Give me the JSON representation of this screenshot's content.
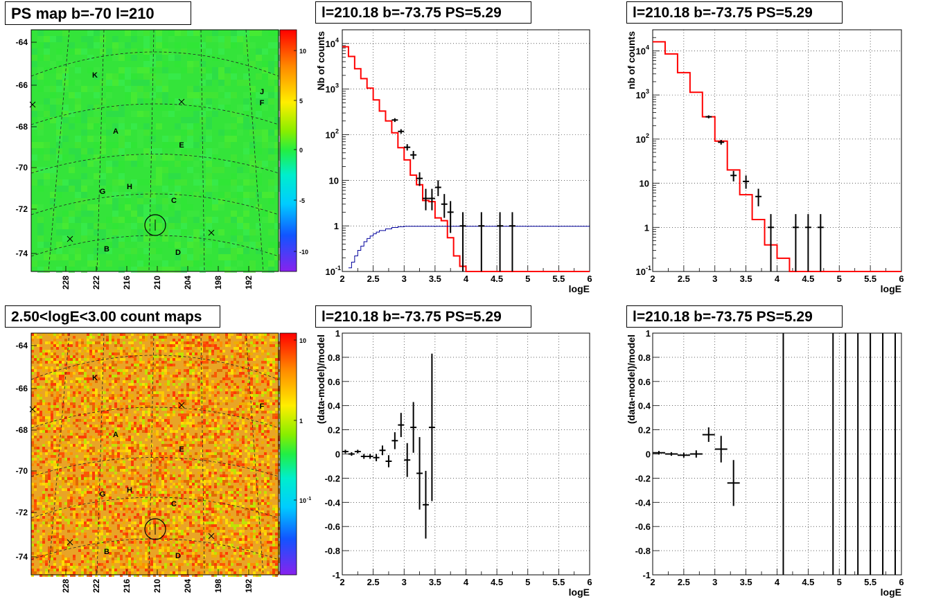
{
  "colors": {
    "data_marker": "#000000",
    "model_line": "#ff0000",
    "efficiency_line": "#00009c",
    "grid": "#000000",
    "map_background_ps": "#33ee33",
    "map_background_counts": "#e8a020"
  },
  "panels": {
    "ps_map": {
      "title": "PS map b=-70 l=210",
      "colorbar_ticks": [
        "10",
        "5",
        "0",
        "-5",
        "-10"
      ],
      "source_labels": [
        "K",
        "J",
        "F",
        "A",
        "E",
        "G",
        "H",
        "C",
        "B",
        "D"
      ],
      "y_ticks": [
        "-64",
        "-66",
        "-68",
        "-70",
        "-72",
        "-74"
      ],
      "x_ticks": [
        "228",
        "222",
        "216",
        "210",
        "204",
        "198",
        "192"
      ]
    },
    "count_map": {
      "title": "2.50<logE<3.00 count maps",
      "colorbar_ticks": [
        "10",
        "1",
        "10"
      ],
      "colorbar_tick_superscript": "-1",
      "source_labels": [
        "K",
        "F",
        "A",
        "E",
        "G",
        "H",
        "C",
        "B",
        "D"
      ],
      "y_ticks": [
        "-64",
        "-66",
        "-68",
        "-70",
        "-72",
        "-74"
      ],
      "x_ticks": [
        "228",
        "222",
        "216",
        "210",
        "204",
        "198",
        "192"
      ]
    }
  },
  "chart_data": [
    {
      "id": "spectrum_left",
      "type": "line",
      "title": "l=210.18 b=-73.75 PS=5.29",
      "xlabel": "logE",
      "ylabel": "Nb of counts",
      "log_y": true,
      "xlim": [
        2,
        6
      ],
      "ylim": [
        0.1,
        20000
      ],
      "grid": true,
      "x_ticks": [
        "2",
        "2.5",
        "3",
        "3.5",
        "4",
        "4.5",
        "5",
        "5.5",
        "6"
      ],
      "y_ticks": [
        {
          "base": "10",
          "exp": "-1"
        },
        {
          "base": "1",
          "exp": ""
        },
        {
          "base": "10",
          "exp": ""
        },
        {
          "base": "10",
          "exp": "2"
        },
        {
          "base": "10",
          "exp": "3"
        },
        {
          "base": "10",
          "exp": "4"
        }
      ],
      "series": [
        {
          "role": "model",
          "edges": [
            2,
            2.1,
            2.2,
            2.3,
            2.4,
            2.5,
            2.6,
            2.7,
            2.8,
            2.9,
            3.0,
            3.1,
            3.2,
            3.3,
            3.4,
            3.5,
            3.6,
            3.7,
            3.8,
            3.9,
            4.0,
            4.1,
            6.0
          ],
          "values": [
            8500,
            5200,
            2800,
            1700,
            1050,
            580,
            330,
            200,
            110,
            52,
            28,
            13,
            8,
            3.6,
            3.4,
            1.5,
            1.3,
            0.55,
            0.22,
            0.13,
            0.1,
            0.1
          ]
        },
        {
          "role": "efficiency",
          "edges": [
            2.1,
            2.15,
            2.2,
            2.25,
            2.3,
            2.35,
            2.4,
            2.45,
            2.5,
            2.55,
            2.6,
            2.7,
            2.8,
            2.9,
            3.0,
            6.0
          ],
          "values": [
            0.12,
            0.16,
            0.22,
            0.29,
            0.36,
            0.45,
            0.53,
            0.6,
            0.67,
            0.73,
            0.79,
            0.86,
            0.92,
            0.96,
            0.98
          ]
        },
        {
          "role": "data",
          "points": [
            {
              "x": 2.85,
              "y": 210,
              "ylo": 190,
              "yhi": 230
            },
            {
              "x": 2.95,
              "y": 118,
              "ylo": 105,
              "yhi": 132
            },
            {
              "x": 3.05,
              "y": 53,
              "ylo": 45,
              "yhi": 62
            },
            {
              "x": 3.15,
              "y": 36,
              "ylo": 29,
              "yhi": 44
            },
            {
              "x": 3.25,
              "y": 11,
              "ylo": 7.5,
              "yhi": 15
            },
            {
              "x": 3.35,
              "y": 4,
              "ylo": 2.2,
              "yhi": 6.5
            },
            {
              "x": 3.45,
              "y": 4,
              "ylo": 2.2,
              "yhi": 6.5
            },
            {
              "x": 3.55,
              "y": 7,
              "ylo": 4.5,
              "yhi": 10
            },
            {
              "x": 3.65,
              "y": 3,
              "ylo": 1.5,
              "yhi": 5
            },
            {
              "x": 3.75,
              "y": 2,
              "ylo": 0.7,
              "yhi": 3.5
            },
            {
              "x": 3.95,
              "y": 1,
              "ylo": 0.1,
              "yhi": 2
            },
            {
              "x": 4.25,
              "y": 1,
              "ylo": 0.1,
              "yhi": 2
            },
            {
              "x": 4.55,
              "y": 1,
              "ylo": 0.1,
              "yhi": 2
            },
            {
              "x": 4.75,
              "y": 1,
              "ylo": 0.1,
              "yhi": 2
            }
          ]
        }
      ]
    },
    {
      "id": "spectrum_right",
      "type": "line",
      "title": "l=210.18 b=-73.75 PS=5.29",
      "xlabel": "logE",
      "ylabel": "nb of counts",
      "log_y": true,
      "xlim": [
        2,
        6
      ],
      "ylim": [
        0.1,
        30000
      ],
      "grid": true,
      "x_ticks": [
        "2",
        "2.5",
        "3",
        "3.5",
        "4",
        "4.5",
        "5",
        "5.5",
        "6"
      ],
      "y_ticks": [
        {
          "base": "10",
          "exp": "-1"
        },
        {
          "base": "1",
          "exp": ""
        },
        {
          "base": "10",
          "exp": ""
        },
        {
          "base": "10",
          "exp": "2"
        },
        {
          "base": "10",
          "exp": "3"
        },
        {
          "base": "10",
          "exp": "4"
        }
      ],
      "series": [
        {
          "role": "model",
          "edges": [
            2,
            2.2,
            2.4,
            2.6,
            2.8,
            3.0,
            3.2,
            3.4,
            3.6,
            3.8,
            4.0,
            4.2,
            6.0
          ],
          "values": [
            16000,
            8500,
            3200,
            1150,
            320,
            90,
            20,
            5.5,
            1.5,
            0.4,
            0.2,
            0.1
          ]
        },
        {
          "role": "data",
          "points": [
            {
              "x": 2.9,
              "y": 320,
              "ylo": 295,
              "yhi": 345
            },
            {
              "x": 3.1,
              "y": 85,
              "ylo": 75,
              "yhi": 96
            },
            {
              "x": 3.3,
              "y": 15,
              "ylo": 11,
              "yhi": 19
            },
            {
              "x": 3.5,
              "y": 11,
              "ylo": 7.5,
              "yhi": 15
            },
            {
              "x": 3.7,
              "y": 5,
              "ylo": 3,
              "yhi": 7.5
            },
            {
              "x": 3.9,
              "y": 1,
              "ylo": 0.1,
              "yhi": 2
            },
            {
              "x": 4.3,
              "y": 1,
              "ylo": 0.1,
              "yhi": 2
            },
            {
              "x": 4.5,
              "y": 1,
              "ylo": 0.1,
              "yhi": 2
            },
            {
              "x": 4.7,
              "y": 1,
              "ylo": 0.1,
              "yhi": 2
            }
          ]
        }
      ]
    },
    {
      "id": "residual_left",
      "type": "scatter",
      "title": "l=210.18 b=-73.75 PS=5.29",
      "xlabel": "logE",
      "ylabel": "(data-model)/model",
      "xlim": [
        2,
        6
      ],
      "ylim": [
        -1,
        1
      ],
      "grid": true,
      "x_ticks": [
        "2",
        "2.5",
        "3",
        "3.5",
        "4",
        "4.5",
        "5",
        "5.5",
        "6"
      ],
      "y_ticks": [
        "1",
        "0.8",
        "0.6",
        "0.4",
        "0.2",
        "0",
        "-0.2",
        "-0.4",
        "-0.6",
        "-0.8",
        "-1"
      ],
      "series": [
        {
          "role": "data",
          "points": [
            {
              "x": 2.05,
              "y": 0.02,
              "err": 0.015,
              "xerr": 0.05
            },
            {
              "x": 2.15,
              "y": 0.0,
              "err": 0.015,
              "xerr": 0.05
            },
            {
              "x": 2.25,
              "y": 0.02,
              "err": 0.015,
              "xerr": 0.05
            },
            {
              "x": 2.35,
              "y": -0.02,
              "err": 0.02,
              "xerr": 0.05
            },
            {
              "x": 2.45,
              "y": -0.02,
              "err": 0.02,
              "xerr": 0.05
            },
            {
              "x": 2.55,
              "y": -0.03,
              "err": 0.03,
              "xerr": 0.05
            },
            {
              "x": 2.65,
              "y": 0.03,
              "err": 0.04,
              "xerr": 0.05
            },
            {
              "x": 2.75,
              "y": -0.06,
              "err": 0.05,
              "xerr": 0.05
            },
            {
              "x": 2.85,
              "y": 0.11,
              "err": 0.07,
              "xerr": 0.05
            },
            {
              "x": 2.95,
              "y": 0.24,
              "err": 0.1,
              "xerr": 0.05
            },
            {
              "x": 3.05,
              "y": -0.05,
              "err": 0.14,
              "xerr": 0.05
            },
            {
              "x": 3.15,
              "y": 0.22,
              "err": 0.21,
              "xerr": 0.05
            },
            {
              "x": 3.25,
              "y": -0.16,
              "err": 0.3,
              "xerr": 0.05
            },
            {
              "x": 3.35,
              "y": -0.42,
              "err": 0.28,
              "xerr": 0.05
            },
            {
              "x": 3.45,
              "y": 0.22,
              "err": 0.61,
              "xerr": 0.05
            }
          ]
        }
      ]
    },
    {
      "id": "residual_right",
      "type": "scatter",
      "title": "l=210.18 b=-73.75 PS=5.29",
      "xlabel": "logE",
      "ylabel": "(data-model)/model",
      "xlim": [
        2,
        6
      ],
      "ylim": [
        -1,
        1
      ],
      "grid": true,
      "x_ticks": [
        "2",
        "2.5",
        "3",
        "3.5",
        "4",
        "4.5",
        "5",
        "5.5",
        "6"
      ],
      "y_ticks": [
        "1",
        "0.8",
        "0.6",
        "0.4",
        "0.2",
        "0",
        "-0.2",
        "-0.4",
        "-0.6",
        "-0.8",
        "-1"
      ],
      "series": [
        {
          "role": "data",
          "points": [
            {
              "x": 2.1,
              "y": 0.01,
              "err": 0.015,
              "xerr": 0.1
            },
            {
              "x": 2.3,
              "y": 0.0,
              "err": 0.015,
              "xerr": 0.1
            },
            {
              "x": 2.5,
              "y": -0.01,
              "err": 0.02,
              "xerr": 0.1
            },
            {
              "x": 2.7,
              "y": 0.0,
              "err": 0.03,
              "xerr": 0.1
            },
            {
              "x": 2.9,
              "y": 0.16,
              "err": 0.06,
              "xerr": 0.1
            },
            {
              "x": 3.1,
              "y": 0.04,
              "err": 0.11,
              "xerr": 0.1
            },
            {
              "x": 3.3,
              "y": -0.24,
              "err": 0.19,
              "xerr": 0.1
            }
          ]
        },
        {
          "role": "vertical_lines",
          "x": [
            4.1,
            4.9,
            5.1,
            5.3,
            5.5,
            5.7,
            5.9
          ]
        }
      ]
    }
  ]
}
